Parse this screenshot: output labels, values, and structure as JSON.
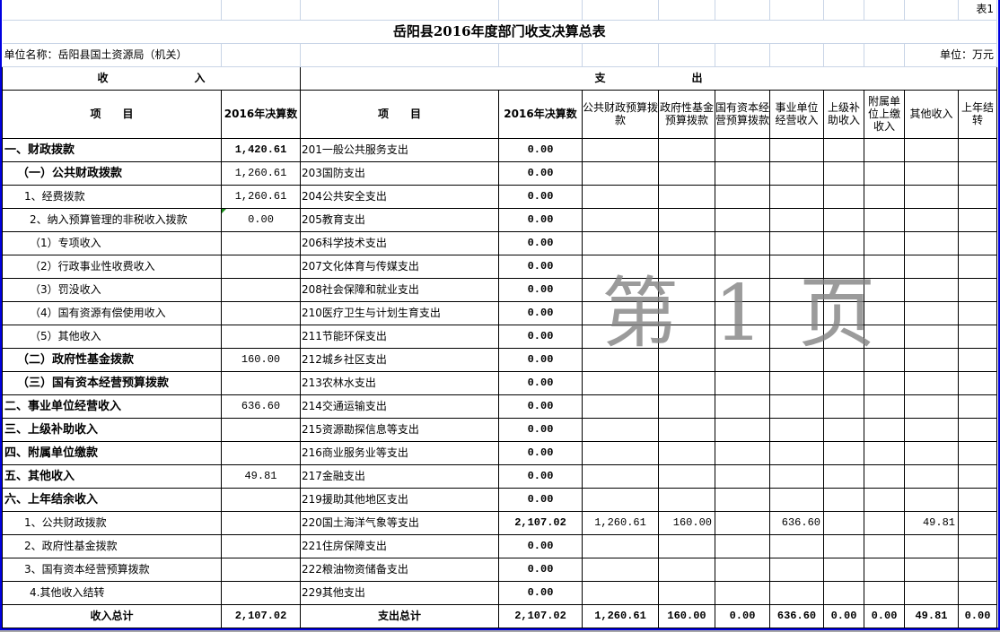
{
  "sheet_label": "表1",
  "title": "岳阳县2016年度部门收支决算总表",
  "unit_name": "单位名称：岳阳县国土资源局（机关）",
  "unit": "单位：万元",
  "watermark": "第 1 页",
  "income_header": "收　　　　　　　　入",
  "expense_header": "支　　　　　　　　出",
  "columns": [
    "项　　目",
    "2016年决算数",
    "项　　目",
    "2016年决算数",
    "公共财政预算拨款",
    "政府性基金预算拨款",
    "国有资本经营预算拨款",
    "事业单位经营收入",
    "上级补助收入",
    "附属单位上缴收入",
    "其他收入",
    "上年结转"
  ],
  "rows": [
    {
      "income": "一、财政拨款",
      "level": 0,
      "bold": true,
      "amount": "1,420.61",
      "expense": "201一般公共服务支出",
      "total": "0.00",
      "vals": [
        "",
        "",
        "",
        "",
        "",
        "",
        "",
        ""
      ]
    },
    {
      "income": "（一）公共财政拨款",
      "level": 1,
      "bold": true,
      "amount": "1,260.61",
      "expense": "203国防支出",
      "total": "0.00",
      "vals": [
        "",
        "",
        "",
        "",
        "",
        "",
        "",
        ""
      ]
    },
    {
      "income": "1、经费拨款",
      "level": 2,
      "bold": false,
      "amount": "1,260.61",
      "expense": "204公共安全支出",
      "total": "0.00",
      "vals": [
        "",
        "",
        "",
        "",
        "",
        "",
        "",
        ""
      ]
    },
    {
      "income": "2、纳入预算管理的非税收入拨款",
      "level": 3,
      "bold": false,
      "amount": "0.00",
      "expense": "205教育支出",
      "total": "0.00",
      "vals": [
        "",
        "",
        "",
        "",
        "",
        "",
        "",
        ""
      ]
    },
    {
      "income": "（1）专项收入",
      "level": 3,
      "bold": false,
      "amount": "",
      "expense": "206科学技术支出",
      "total": "0.00",
      "vals": [
        "",
        "",
        "",
        "",
        "",
        "",
        "",
        ""
      ]
    },
    {
      "income": "（2）行政事业性收费收入",
      "level": 3,
      "bold": false,
      "amount": "",
      "expense": "207文化体育与传媒支出",
      "total": "0.00",
      "vals": [
        "",
        "",
        "",
        "",
        "",
        "",
        "",
        ""
      ]
    },
    {
      "income": "（3）罚没收入",
      "level": 3,
      "bold": false,
      "amount": "",
      "expense": "208社会保障和就业支出",
      "total": "0.00",
      "vals": [
        "",
        "",
        "",
        "",
        "",
        "",
        "",
        ""
      ]
    },
    {
      "income": "（4）国有资源有偿使用收入",
      "level": 3,
      "bold": false,
      "amount": "",
      "expense": "210医疗卫生与计划生育支出",
      "total": "0.00",
      "vals": [
        "",
        "",
        "",
        "",
        "",
        "",
        "",
        ""
      ]
    },
    {
      "income": "（5）其他收入",
      "level": 3,
      "bold": false,
      "amount": "",
      "expense": "211节能环保支出",
      "total": "0.00",
      "vals": [
        "",
        "",
        "",
        "",
        "",
        "",
        "",
        ""
      ]
    },
    {
      "income": "（二）政府性基金拨款",
      "level": 1,
      "bold": true,
      "amount": "160.00",
      "expense": "212城乡社区支出",
      "total": "0.00",
      "vals": [
        "",
        "",
        "",
        "",
        "",
        "",
        "",
        ""
      ]
    },
    {
      "income": "（三）国有资本经营预算拨款",
      "level": 1,
      "bold": true,
      "amount": "",
      "expense": "213农林水支出",
      "total": "0.00",
      "vals": [
        "",
        "",
        "",
        "",
        "",
        "",
        "",
        ""
      ]
    },
    {
      "income": "二、事业单位经营收入",
      "level": 0,
      "bold": true,
      "amount": "636.60",
      "expense": "214交通运输支出",
      "total": "0.00",
      "vals": [
        "",
        "",
        "",
        "",
        "",
        "",
        "",
        ""
      ]
    },
    {
      "income": "三、上级补助收入",
      "level": 0,
      "bold": true,
      "amount": "",
      "expense": "215资源勘探信息等支出",
      "total": "0.00",
      "vals": [
        "",
        "",
        "",
        "",
        "",
        "",
        "",
        ""
      ]
    },
    {
      "income": "四、附属单位缴款",
      "level": 0,
      "bold": true,
      "amount": "",
      "expense": "216商业服务业等支出",
      "total": "0.00",
      "vals": [
        "",
        "",
        "",
        "",
        "",
        "",
        "",
        ""
      ]
    },
    {
      "income": "五、其他收入",
      "level": 0,
      "bold": true,
      "amount": "49.81",
      "expense": "217金融支出",
      "total": "0.00",
      "vals": [
        "",
        "",
        "",
        "",
        "",
        "",
        "",
        ""
      ]
    },
    {
      "income": "六、上年结余收入",
      "level": 0,
      "bold": true,
      "amount": "",
      "expense": "219援助其他地区支出",
      "total": "0.00",
      "vals": [
        "",
        "",
        "",
        "",
        "",
        "",
        "",
        ""
      ]
    },
    {
      "income": "1、公共财政拨款",
      "level": 2,
      "bold": false,
      "amount": "",
      "expense": "220国土海洋气象等支出",
      "total": "2,107.02",
      "vals": [
        "1,260.61",
        "160.00",
        "",
        "636.60",
        "",
        "",
        "49.81",
        ""
      ]
    },
    {
      "income": "2、政府性基金拨款",
      "level": 2,
      "bold": false,
      "amount": "",
      "expense": "221住房保障支出",
      "total": "0.00",
      "vals": [
        "",
        "",
        "",
        "",
        "",
        "",
        "",
        ""
      ]
    },
    {
      "income": "3、国有资本经营预算拨款",
      "level": 2,
      "bold": false,
      "amount": "",
      "expense": "222粮油物资储备支出",
      "total": "0.00",
      "vals": [
        "",
        "",
        "",
        "",
        "",
        "",
        "",
        ""
      ]
    },
    {
      "income": "4.其他收入结转",
      "level": 3,
      "bold": false,
      "amount": "",
      "expense": "229其他支出",
      "total": "0.00",
      "vals": [
        "",
        "",
        "",
        "",
        "",
        "",
        "",
        ""
      ]
    }
  ],
  "totals": {
    "income_label": "收入总计",
    "income_amount": "2,107.02",
    "expense_label": "支出总计",
    "expense_total": "2,107.02",
    "vals": [
      "1,260.61",
      "160.00",
      "0.00",
      "636.60",
      "0.00",
      "0.00",
      "49.81",
      "0.00"
    ]
  }
}
